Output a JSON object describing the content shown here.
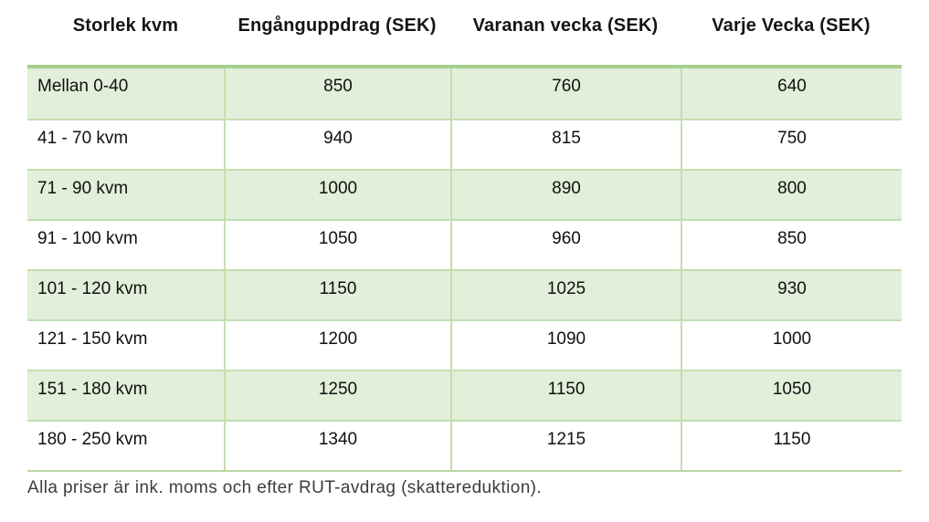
{
  "table": {
    "columns": [
      "Storlek kvm",
      "Engånguppdrag (SEK)",
      "Varanan vecka (SEK)",
      "Varje Vecka (SEK)"
    ],
    "rows": [
      [
        "Mellan 0-40",
        "850",
        "760",
        "640"
      ],
      [
        "41 - 70 kvm",
        "940",
        "815",
        "750"
      ],
      [
        "71 - 90 kvm",
        "1000",
        "890",
        "800"
      ],
      [
        "91 - 100 kvm",
        "1050",
        "960",
        "850"
      ],
      [
        "101 - 120 kvm",
        "1150",
        "1025",
        "930"
      ],
      [
        "121 - 150 kvm",
        "1200",
        "1090",
        "1000"
      ],
      [
        "151 - 180 kvm",
        "1250",
        "1150",
        "1050"
      ],
      [
        "180 - 250 kvm",
        "1340",
        "1215",
        "1150"
      ]
    ]
  },
  "footer": {
    "note": "Alla priser är ink. moms och efter RUT-avdrag (skattereduktion)."
  },
  "colors": {
    "row_highlight": "#e2efda",
    "border_strong": "#a6cf8c",
    "border_light": "#c3dfb0",
    "header_text": "#151515",
    "body_text": "#111111",
    "footer_text": "#3d3d3d"
  }
}
